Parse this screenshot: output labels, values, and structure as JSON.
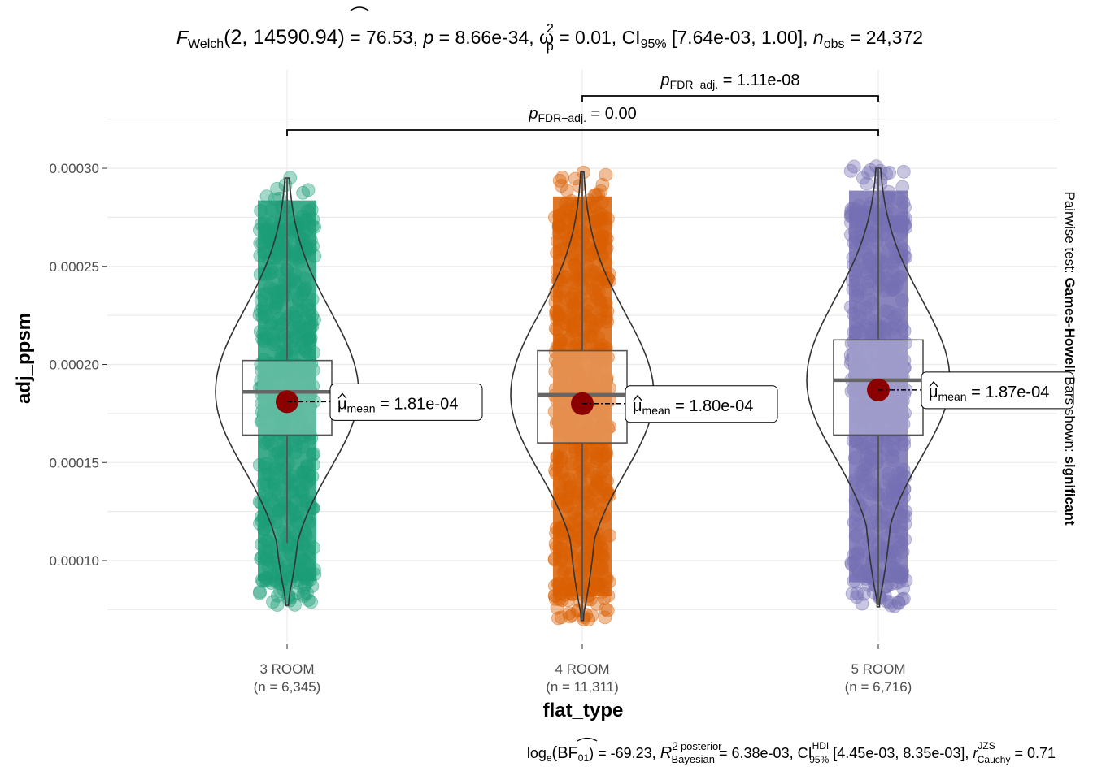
{
  "chart_data": {
    "type": "violin-box-scatter",
    "title": {
      "f_label": "F",
      "f_sub": "Welch",
      "df": "(2, 14590.94)",
      "eq1": " = 76.53, ",
      "p_label": "p",
      "eq2": " = 8.66e-34, ",
      "omega_label": "ω",
      "omega_sup": "2",
      "omega_sub": "p",
      "eq3": " = 0.01, CI",
      "ci_sub": "95%",
      "ci_value": " [7.64e-03, 1.00], ",
      "n_label": "n",
      "n_sub": "obs",
      "n_value": " = 24,372"
    },
    "subtitle_bayes": {
      "log_label": "log",
      "log_sub": "e",
      "bf_open": "(BF",
      "bf_sub": "01",
      "bf_value": ") = -69.23, ",
      "r_label": "R",
      "r_sup": "2",
      "r_sup2": "posterior",
      "r_sub": "Bayesian",
      "r_value": " = 6.38e-03, CI",
      "ci_sup": "HDI",
      "ci_sub": "95%",
      "ci_value": " [4.45e-03, 8.35e-03], ",
      "rc_label": "r",
      "rc_sup": "JZS",
      "rc_sub": "Cauchy",
      "rc_value": " = 0.71"
    },
    "xlabel": "flat_type",
    "ylabel": "adj_ppsm",
    "ylim": [
      6e-05,
      0.00035
    ],
    "yticks": [
      0.0001,
      0.00015,
      0.0002,
      0.00025,
      0.0003
    ],
    "ytick_labels": [
      "0.00010",
      "0.00015",
      "0.00020",
      "0.00025",
      "0.00030"
    ],
    "grid": true,
    "categories": [
      "3 ROOM",
      "4 ROOM",
      "5 ROOM"
    ],
    "category_n": [
      "(n = 6,345)",
      "(n = 11,311)",
      "(n = 6,716)"
    ],
    "groups": [
      {
        "name": "3 ROOM",
        "color": "#1B9E77",
        "mean": 0.000181,
        "mean_label_prefix": "μ",
        "mean_label_sub": "mean",
        "mean_label_value": " = 1.81e-04",
        "median": 0.000186,
        "q1": 0.000164,
        "q3": 0.000202,
        "whisker_low": 0.000109,
        "whisker_high": 0.000295,
        "point_min": 7.72e-05,
        "point_max": 0.000296
      },
      {
        "name": "4 ROOM",
        "color": "#D95F02",
        "mean": 0.00018,
        "mean_label_prefix": "μ",
        "mean_label_sub": "mean",
        "mean_label_value": " = 1.80e-04",
        "median": 0.0001845,
        "q1": 0.00016,
        "q3": 0.000207,
        "whisker_low": 7.02e-05,
        "whisker_high": 0.000298,
        "point_min": 6.95e-05,
        "point_max": 0.000298
      },
      {
        "name": "5 ROOM",
        "color": "#7570B3",
        "mean": 0.000187,
        "mean_label_prefix": "μ",
        "mean_label_sub": "mean",
        "mean_label_value": " = 1.87e-04",
        "median": 0.000192,
        "q1": 0.000164,
        "q3": 0.0002125,
        "whisker_low": 7.72e-05,
        "whisker_high": 0.0003,
        "point_min": 7.65e-05,
        "point_max": 0.000301
      }
    ],
    "pairwise": [
      {
        "from": "4 ROOM",
        "to": "5 ROOM",
        "label_p": "p",
        "label_sub": "FDR−adj.",
        "label_value": " = 1.11e-08"
      },
      {
        "from": "3 ROOM",
        "to": "5 ROOM",
        "label_p": "p",
        "label_sub": "FDR−adj.",
        "label_value": " = 0.00"
      }
    ],
    "caption": {
      "part1": "Pairwise test: ",
      "part2": "Games-Howell",
      "part3": " Bars shown: ",
      "part4": "significant"
    },
    "mean_color": "#8B0000"
  }
}
